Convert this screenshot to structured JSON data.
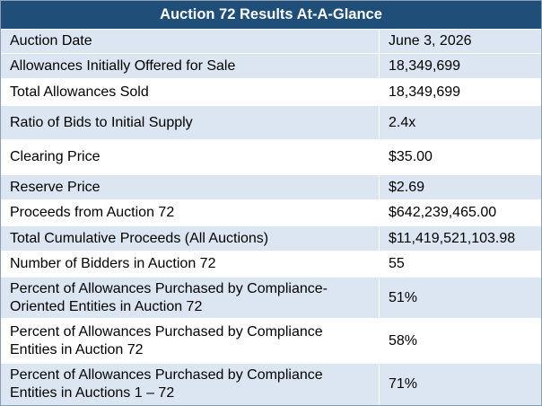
{
  "table": {
    "title": "Auction 72 Results At-A-Glance",
    "rows": [
      {
        "label": "Auction Date",
        "value": "June 3, 2026"
      },
      {
        "label": "Allowances Initially Offered for Sale",
        "value": "18,349,699"
      },
      {
        "label": "Total Allowances Sold",
        "value": "18,349,699"
      },
      {
        "label": "Ratio of Bids to Initial Supply",
        "value": "2.4x"
      },
      {
        "label": "Clearing Price",
        "value": "$35.00"
      },
      {
        "label": "Reserve Price",
        "value": "$2.69"
      },
      {
        "label": "Proceeds from Auction 72",
        "value": "$642,239,465.00"
      },
      {
        "label": "Total Cumulative Proceeds (All Auctions)",
        "value": "$11,419,521,103.98"
      },
      {
        "label": "Number of Bidders in Auction 72",
        "value": "55"
      },
      {
        "label": "Percent of Allowances Purchased by Compliance-\nOriented Entities in Auction 72",
        "value": "51%"
      },
      {
        "label": "Percent of Allowances Purchased by Compliance\nEntities in Auction 72",
        "value": "58%"
      },
      {
        "label": "Percent of Allowances Purchased by Compliance\nEntities in Auctions 1 – 72",
        "value": "71%"
      }
    ]
  }
}
